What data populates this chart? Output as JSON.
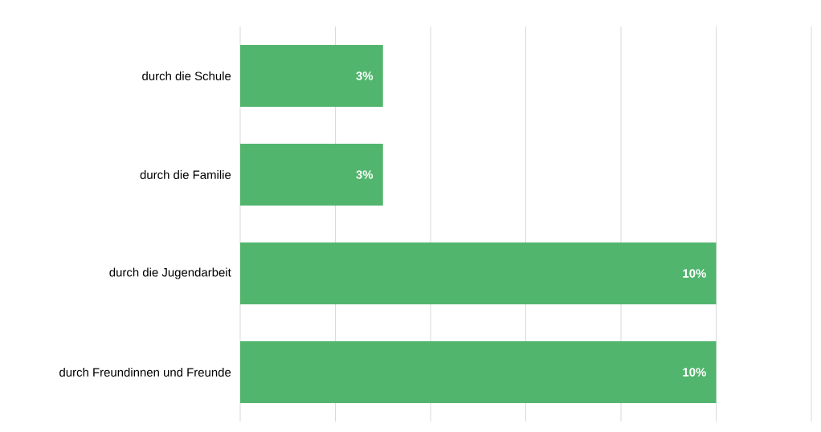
{
  "chart_data": {
    "type": "bar",
    "orientation": "horizontal",
    "categories": [
      "durch die Schule",
      "durch die Familie",
      "durch die Jugendarbeit",
      "durch Freundinnen und Freunde"
    ],
    "values": [
      3,
      3,
      10,
      10
    ],
    "value_labels": [
      "3%",
      "3%",
      "10%",
      "10%"
    ],
    "color": "#52b56e",
    "xlim": [
      0,
      12
    ],
    "xticks": [
      {
        "value": 0,
        "label": null
      },
      {
        "value": 2,
        "label": null
      },
      {
        "value": 4,
        "label": null
      },
      {
        "value": 6,
        "label": null
      },
      {
        "value": 8,
        "label": null
      },
      {
        "value": 10,
        "label": null
      },
      {
        "value": 12,
        "label": null
      }
    ],
    "grid": "x",
    "tick_labels": "y"
  }
}
